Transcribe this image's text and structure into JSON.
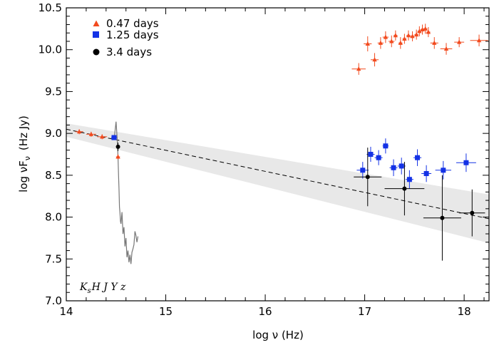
{
  "chart_data": {
    "type": "scatter",
    "xlabel": "log ν  (Hz)",
    "ylabel": "log νF",
    "ylabel_sub": "ν",
    "ylabel_unit": "(Hz  Jy)",
    "xlim": [
      14.0,
      18.25
    ],
    "ylim": [
      7.0,
      10.5
    ],
    "x_ticks": [
      "14",
      "15",
      "16",
      "17",
      "18"
    ],
    "y_ticks": [
      "7.0",
      "7.5",
      "8.0",
      "8.5",
      "9.0",
      "9.5",
      "10.0",
      "10.5"
    ],
    "grid": false,
    "legend_position": "top-left",
    "annotation": {
      "main": "K",
      "sub": "s",
      "rest": "H J Y z"
    },
    "colors": {
      "red": "#f24a1e",
      "blue": "#1432e6",
      "black": "#000000",
      "band": "#e8e8e8",
      "spectrum": "#777777"
    },
    "fit_line": {
      "x": [
        14.0,
        18.25
      ],
      "y": [
        9.05,
        7.98
      ]
    },
    "uncertainty_band": {
      "x": [
        14.0,
        18.25
      ],
      "upper": [
        9.12,
        8.27
      ],
      "lower": [
        8.96,
        7.69
      ]
    },
    "series": [
      {
        "name": "0.47 days",
        "marker": "triangle",
        "color": "#f24a1e",
        "points": [
          {
            "x": 14.13,
            "y": 9.02,
            "xerr": 0.04,
            "yerr": 0.03
          },
          {
            "x": 14.25,
            "y": 8.99,
            "xerr": 0.05,
            "yerr": 0.03
          },
          {
            "x": 14.36,
            "y": 8.96,
            "xerr": 0.05,
            "yerr": 0.03
          },
          {
            "x": 14.52,
            "y": 8.72,
            "xerr": 0.02,
            "yerr": 0.03
          },
          {
            "x": 16.94,
            "y": 9.77,
            "xerr": 0.07,
            "yerr": 0.07
          },
          {
            "x": 17.03,
            "y": 10.07,
            "xerr": 0.04,
            "yerr": 0.09
          },
          {
            "x": 17.1,
            "y": 9.88,
            "xerr": 0.04,
            "yerr": 0.08
          },
          {
            "x": 17.16,
            "y": 10.08,
            "xerr": 0.03,
            "yerr": 0.07
          },
          {
            "x": 17.21,
            "y": 10.15,
            "xerr": 0.03,
            "yerr": 0.07
          },
          {
            "x": 17.27,
            "y": 10.1,
            "xerr": 0.03,
            "yerr": 0.07
          },
          {
            "x": 17.31,
            "y": 10.17,
            "xerr": 0.02,
            "yerr": 0.06
          },
          {
            "x": 17.36,
            "y": 10.08,
            "xerr": 0.02,
            "yerr": 0.07
          },
          {
            "x": 17.4,
            "y": 10.13,
            "xerr": 0.02,
            "yerr": 0.06
          },
          {
            "x": 17.44,
            "y": 10.17,
            "xerr": 0.02,
            "yerr": 0.06
          },
          {
            "x": 17.48,
            "y": 10.16,
            "xerr": 0.02,
            "yerr": 0.06
          },
          {
            "x": 17.52,
            "y": 10.18,
            "xerr": 0.02,
            "yerr": 0.06
          },
          {
            "x": 17.55,
            "y": 10.22,
            "xerr": 0.02,
            "yerr": 0.06
          },
          {
            "x": 17.58,
            "y": 10.24,
            "xerr": 0.02,
            "yerr": 0.06
          },
          {
            "x": 17.61,
            "y": 10.25,
            "xerr": 0.02,
            "yerr": 0.06
          },
          {
            "x": 17.64,
            "y": 10.21,
            "xerr": 0.02,
            "yerr": 0.06
          },
          {
            "x": 17.7,
            "y": 10.08,
            "xerr": 0.04,
            "yerr": 0.07
          },
          {
            "x": 17.82,
            "y": 10.01,
            "xerr": 0.06,
            "yerr": 0.07
          },
          {
            "x": 17.95,
            "y": 10.09,
            "xerr": 0.05,
            "yerr": 0.06
          },
          {
            "x": 18.15,
            "y": 10.11,
            "xerr": 0.09,
            "yerr": 0.07
          }
        ]
      },
      {
        "name": "1.25 days",
        "marker": "square",
        "color": "#1432e6",
        "points": [
          {
            "x": 14.48,
            "y": 8.95,
            "xerr": 0.03,
            "yerr": 0.03
          },
          {
            "x": 16.98,
            "y": 8.56,
            "xerr": 0.06,
            "yerr": 0.1
          },
          {
            "x": 17.06,
            "y": 8.75,
            "xerr": 0.04,
            "yerr": 0.09
          },
          {
            "x": 17.14,
            "y": 8.71,
            "xerr": 0.04,
            "yerr": 0.09
          },
          {
            "x": 17.21,
            "y": 8.85,
            "xerr": 0.03,
            "yerr": 0.09
          },
          {
            "x": 17.29,
            "y": 8.59,
            "xerr": 0.04,
            "yerr": 0.1
          },
          {
            "x": 17.37,
            "y": 8.61,
            "xerr": 0.04,
            "yerr": 0.1
          },
          {
            "x": 17.45,
            "y": 8.45,
            "xerr": 0.04,
            "yerr": 0.11
          },
          {
            "x": 17.53,
            "y": 8.71,
            "xerr": 0.04,
            "yerr": 0.1
          },
          {
            "x": 17.62,
            "y": 8.52,
            "xerr": 0.05,
            "yerr": 0.1
          },
          {
            "x": 17.79,
            "y": 8.56,
            "xerr": 0.08,
            "yerr": 0.11
          },
          {
            "x": 18.02,
            "y": 8.65,
            "xerr": 0.1,
            "yerr": 0.11
          }
        ]
      },
      {
        "name": "3.4 days",
        "marker": "circle",
        "color": "#000000",
        "points": [
          {
            "x": 14.52,
            "y": 8.84,
            "xerr": 0.01,
            "yerr": 0.05
          },
          {
            "x": 17.03,
            "y": 8.48,
            "xerr": 0.14,
            "yerr": 0.35
          },
          {
            "x": 17.4,
            "y": 8.34,
            "xerr": 0.2,
            "yerr": 0.32
          },
          {
            "x": 17.78,
            "y": 7.99,
            "xerr": 0.19,
            "yerr": 0.51
          },
          {
            "x": 18.08,
            "y": 8.05,
            "xerr": 0.13,
            "yerr": 0.28
          }
        ]
      }
    ],
    "spectrum": {
      "color": "#777777",
      "x": [
        14.48,
        14.49,
        14.5,
        14.505,
        14.51,
        14.515,
        14.52,
        14.525,
        14.53,
        14.535,
        14.54,
        14.545,
        14.55,
        14.56,
        14.57,
        14.58,
        14.59,
        14.6,
        14.61,
        14.62,
        14.63,
        14.64,
        14.65,
        14.66,
        14.67,
        14.68,
        14.69,
        14.7,
        14.71,
        14.72
      ],
      "y": [
        8.93,
        9.03,
        9.14,
        9.05,
        8.96,
        8.85,
        8.7,
        8.5,
        8.32,
        8.12,
        8.05,
        7.95,
        7.92,
        8.06,
        7.8,
        7.88,
        7.65,
        7.75,
        7.52,
        7.6,
        7.46,
        7.55,
        7.44,
        7.58,
        7.62,
        7.67,
        7.83,
        7.78,
        7.7,
        7.77
      ]
    }
  }
}
